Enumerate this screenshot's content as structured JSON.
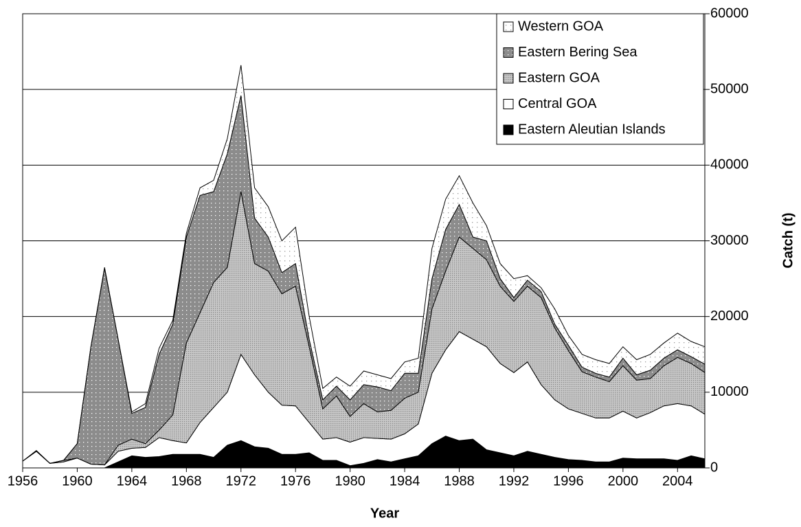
{
  "chart_data": {
    "type": "stacked_area",
    "x_label": "Year",
    "y_label": "Catch (t)",
    "x": [
      1956,
      1957,
      1958,
      1959,
      1960,
      1961,
      1962,
      1963,
      1964,
      1965,
      1966,
      1967,
      1968,
      1969,
      1970,
      1971,
      1972,
      1973,
      1974,
      1975,
      1976,
      1977,
      1978,
      1979,
      1980,
      1981,
      1982,
      1983,
      1984,
      1985,
      1986,
      1987,
      1988,
      1989,
      1990,
      1991,
      1992,
      1993,
      1994,
      1995,
      1996,
      1997,
      1998,
      1999,
      2000,
      2001,
      2002,
      2003,
      2004,
      2005,
      2006
    ],
    "xlim": [
      1956,
      2006
    ],
    "xticks": [
      1956,
      1960,
      1964,
      1968,
      1972,
      1976,
      1980,
      1984,
      1988,
      1992,
      1996,
      2000,
      2004
    ],
    "ylim": [
      0,
      60000
    ],
    "yticks": [
      0,
      10000,
      20000,
      30000,
      40000,
      50000,
      60000
    ],
    "grid": true,
    "legend": "upper right",
    "series": [
      {
        "name": "Eastern Aleutian Islands",
        "color": "#000000",
        "values": [
          0,
          0,
          0,
          0,
          0,
          0,
          0,
          800,
          1600,
          1400,
          1500,
          1800,
          1800,
          1800,
          1400,
          3000,
          3600,
          2800,
          2600,
          1800,
          1800,
          2000,
          1000,
          1000,
          300,
          600,
          1100,
          800,
          1200,
          1600,
          3200,
          4200,
          3600,
          3800,
          2400,
          2000,
          1600,
          2200,
          1800,
          1400,
          1100,
          1000,
          800,
          800,
          1300,
          1200,
          1200,
          1200,
          1000,
          1600,
          1200
        ]
      },
      {
        "name": "Central GOA",
        "color": "#ffffff",
        "values": [
          900,
          2200,
          600,
          800,
          1300,
          500,
          400,
          1400,
          1000,
          1300,
          2500,
          1800,
          1500,
          4200,
          6600,
          7000,
          11400,
          9500,
          7400,
          6500,
          6400,
          4000,
          2800,
          3000,
          3100,
          3400,
          2800,
          3000,
          3300,
          4200,
          9300,
          11400,
          14400,
          13200,
          13600,
          11800,
          11000,
          11800,
          9200,
          7600,
          6700,
          6200,
          5800,
          5800,
          6200,
          5400,
          6100,
          7000,
          7500,
          6600,
          5900
        ]
      },
      {
        "name": "Eastern GOA",
        "color": "#c8c8c8",
        "values": [
          0,
          0,
          0,
          200,
          0,
          0,
          0,
          800,
          1200,
          500,
          1000,
          3400,
          13200,
          14500,
          16500,
          16500,
          21500,
          14700,
          16000,
          14700,
          15800,
          10000,
          4000,
          5500,
          3400,
          4500,
          3500,
          3800,
          4700,
          4200,
          8500,
          10400,
          12500,
          12000,
          11500,
          10200,
          9400,
          10000,
          11500,
          9500,
          7700,
          5500,
          5400,
          4800,
          6000,
          5000,
          4500,
          5300,
          6100,
          5600,
          5500
        ]
      },
      {
        "name": "Eastern Bering Sea",
        "color": "#8c8c8c",
        "values": [
          0,
          0,
          0,
          0,
          1900,
          15500,
          26000,
          14000,
          3400,
          4800,
          10000,
          12000,
          14000,
          15500,
          12000,
          15000,
          12700,
          6000,
          4500,
          2800,
          3000,
          1000,
          1200,
          1300,
          2200,
          2500,
          3300,
          2600,
          3300,
          2500,
          4000,
          5500,
          4300,
          1500,
          2500,
          1000,
          500,
          800,
          800,
          500,
          700,
          600,
          500,
          600,
          1000,
          700,
          1100,
          1000,
          1000,
          900,
          1100
        ]
      },
      {
        "name": "Western GOA",
        "color": "#ffffff",
        "values": [
          0,
          100,
          0,
          0,
          0,
          0,
          100,
          0,
          200,
          500,
          800,
          500,
          500,
          1000,
          1500,
          2000,
          4000,
          4000,
          4000,
          4200,
          4800,
          3000,
          1500,
          1200,
          1800,
          1800,
          1600,
          1600,
          1500,
          2000,
          4000,
          4000,
          3800,
          4500,
          2000,
          2000,
          2500,
          600,
          500,
          2000,
          1300,
          1700,
          1800,
          1800,
          1500,
          2000,
          2100,
          2000,
          2200,
          2000,
          2300
        ]
      }
    ]
  }
}
